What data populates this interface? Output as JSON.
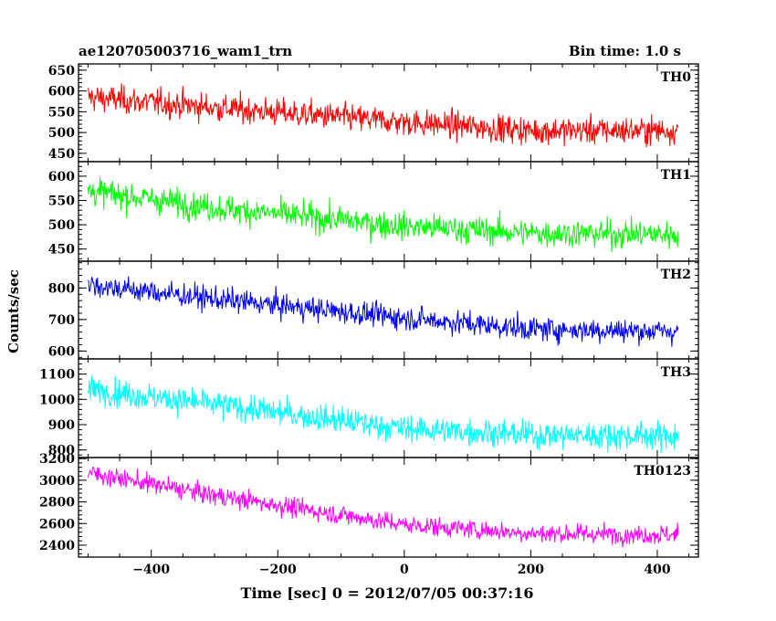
{
  "header": {
    "left_title": "ae120705003716_wam1_trn",
    "right_title": "Bin time: 1.0 s"
  },
  "axes": {
    "xlabel": "Time [sec] 0 = 2012/07/05 00:37:16",
    "ylabel": "Counts/sec",
    "xlim": [
      -515,
      465
    ],
    "xticks": [
      -400,
      -200,
      0,
      200,
      400
    ],
    "xtick_labels": [
      "−400",
      "−200",
      "0",
      "200",
      "400"
    ]
  },
  "chart_data": {
    "type": "line",
    "x_start": -500,
    "x_end": 433,
    "bin_time": 1.0,
    "series": [
      {
        "name": "TH0",
        "color": "#ff0000",
        "ylim": [
          430,
          665
        ],
        "yticks": [
          450,
          500,
          550,
          600,
          650
        ],
        "trend": [
          [
            -500,
            585
          ],
          [
            -300,
            560
          ],
          [
            0,
            525
          ],
          [
            200,
            505
          ],
          [
            433,
            505
          ]
        ],
        "noise": 28
      },
      {
        "name": "TH1",
        "color": "#00ff00",
        "ylim": [
          425,
          630
        ],
        "yticks": [
          450,
          500,
          550,
          600
        ],
        "trend": [
          [
            -500,
            570
          ],
          [
            -300,
            535
          ],
          [
            0,
            497
          ],
          [
            200,
            483
          ],
          [
            433,
            480
          ]
        ],
        "noise": 24
      },
      {
        "name": "TH2",
        "color": "#0000ff",
        "ylim": [
          575,
          885
        ],
        "yticks": [
          600,
          700,
          800
        ],
        "trend": [
          [
            -500,
            810
          ],
          [
            -300,
            765
          ],
          [
            0,
            705
          ],
          [
            200,
            670
          ],
          [
            433,
            662
          ]
        ],
        "noise": 32
      },
      {
        "name": "TH3",
        "color": "#00ffff",
        "ylim": [
          770,
          1160
        ],
        "yticks": [
          800,
          900,
          1000,
          1100
        ],
        "trend": [
          [
            -500,
            1040
          ],
          [
            -300,
            980
          ],
          [
            0,
            885
          ],
          [
            200,
            860
          ],
          [
            433,
            855
          ]
        ],
        "noise": 45
      },
      {
        "name": "TH0123",
        "color": "#ff00ff",
        "ylim": [
          2290,
          3210
        ],
        "yticks": [
          2400,
          2600,
          2800,
          3000,
          3200
        ],
        "trend": [
          [
            -500,
            3070
          ],
          [
            -300,
            2860
          ],
          [
            0,
            2590
          ],
          [
            200,
            2510
          ],
          [
            433,
            2495
          ]
        ],
        "noise": 75
      }
    ]
  }
}
